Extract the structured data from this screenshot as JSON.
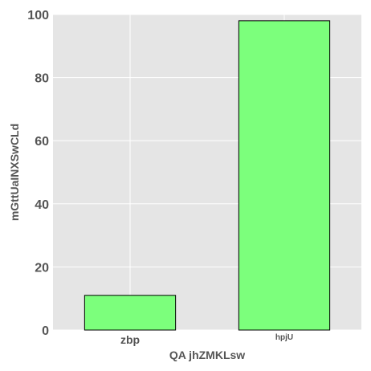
{
  "chart_data": {
    "type": "bar",
    "categories": [
      "zbp",
      "hpjU"
    ],
    "values": [
      11,
      98
    ],
    "title": "",
    "xlabel": "QA jhZMKLsw",
    "ylabel": "mGttUaINXSwCLd",
    "ylim": [
      0,
      100
    ],
    "yticks": [
      0,
      20,
      40,
      60,
      80,
      100
    ],
    "grid": true,
    "legend": "none",
    "colors": {
      "plot_background": "#e5e5e5",
      "grid": "#ffffff",
      "bar_fill": "#7cff7c",
      "bar_edge": "#000000",
      "text": "#555555"
    }
  }
}
